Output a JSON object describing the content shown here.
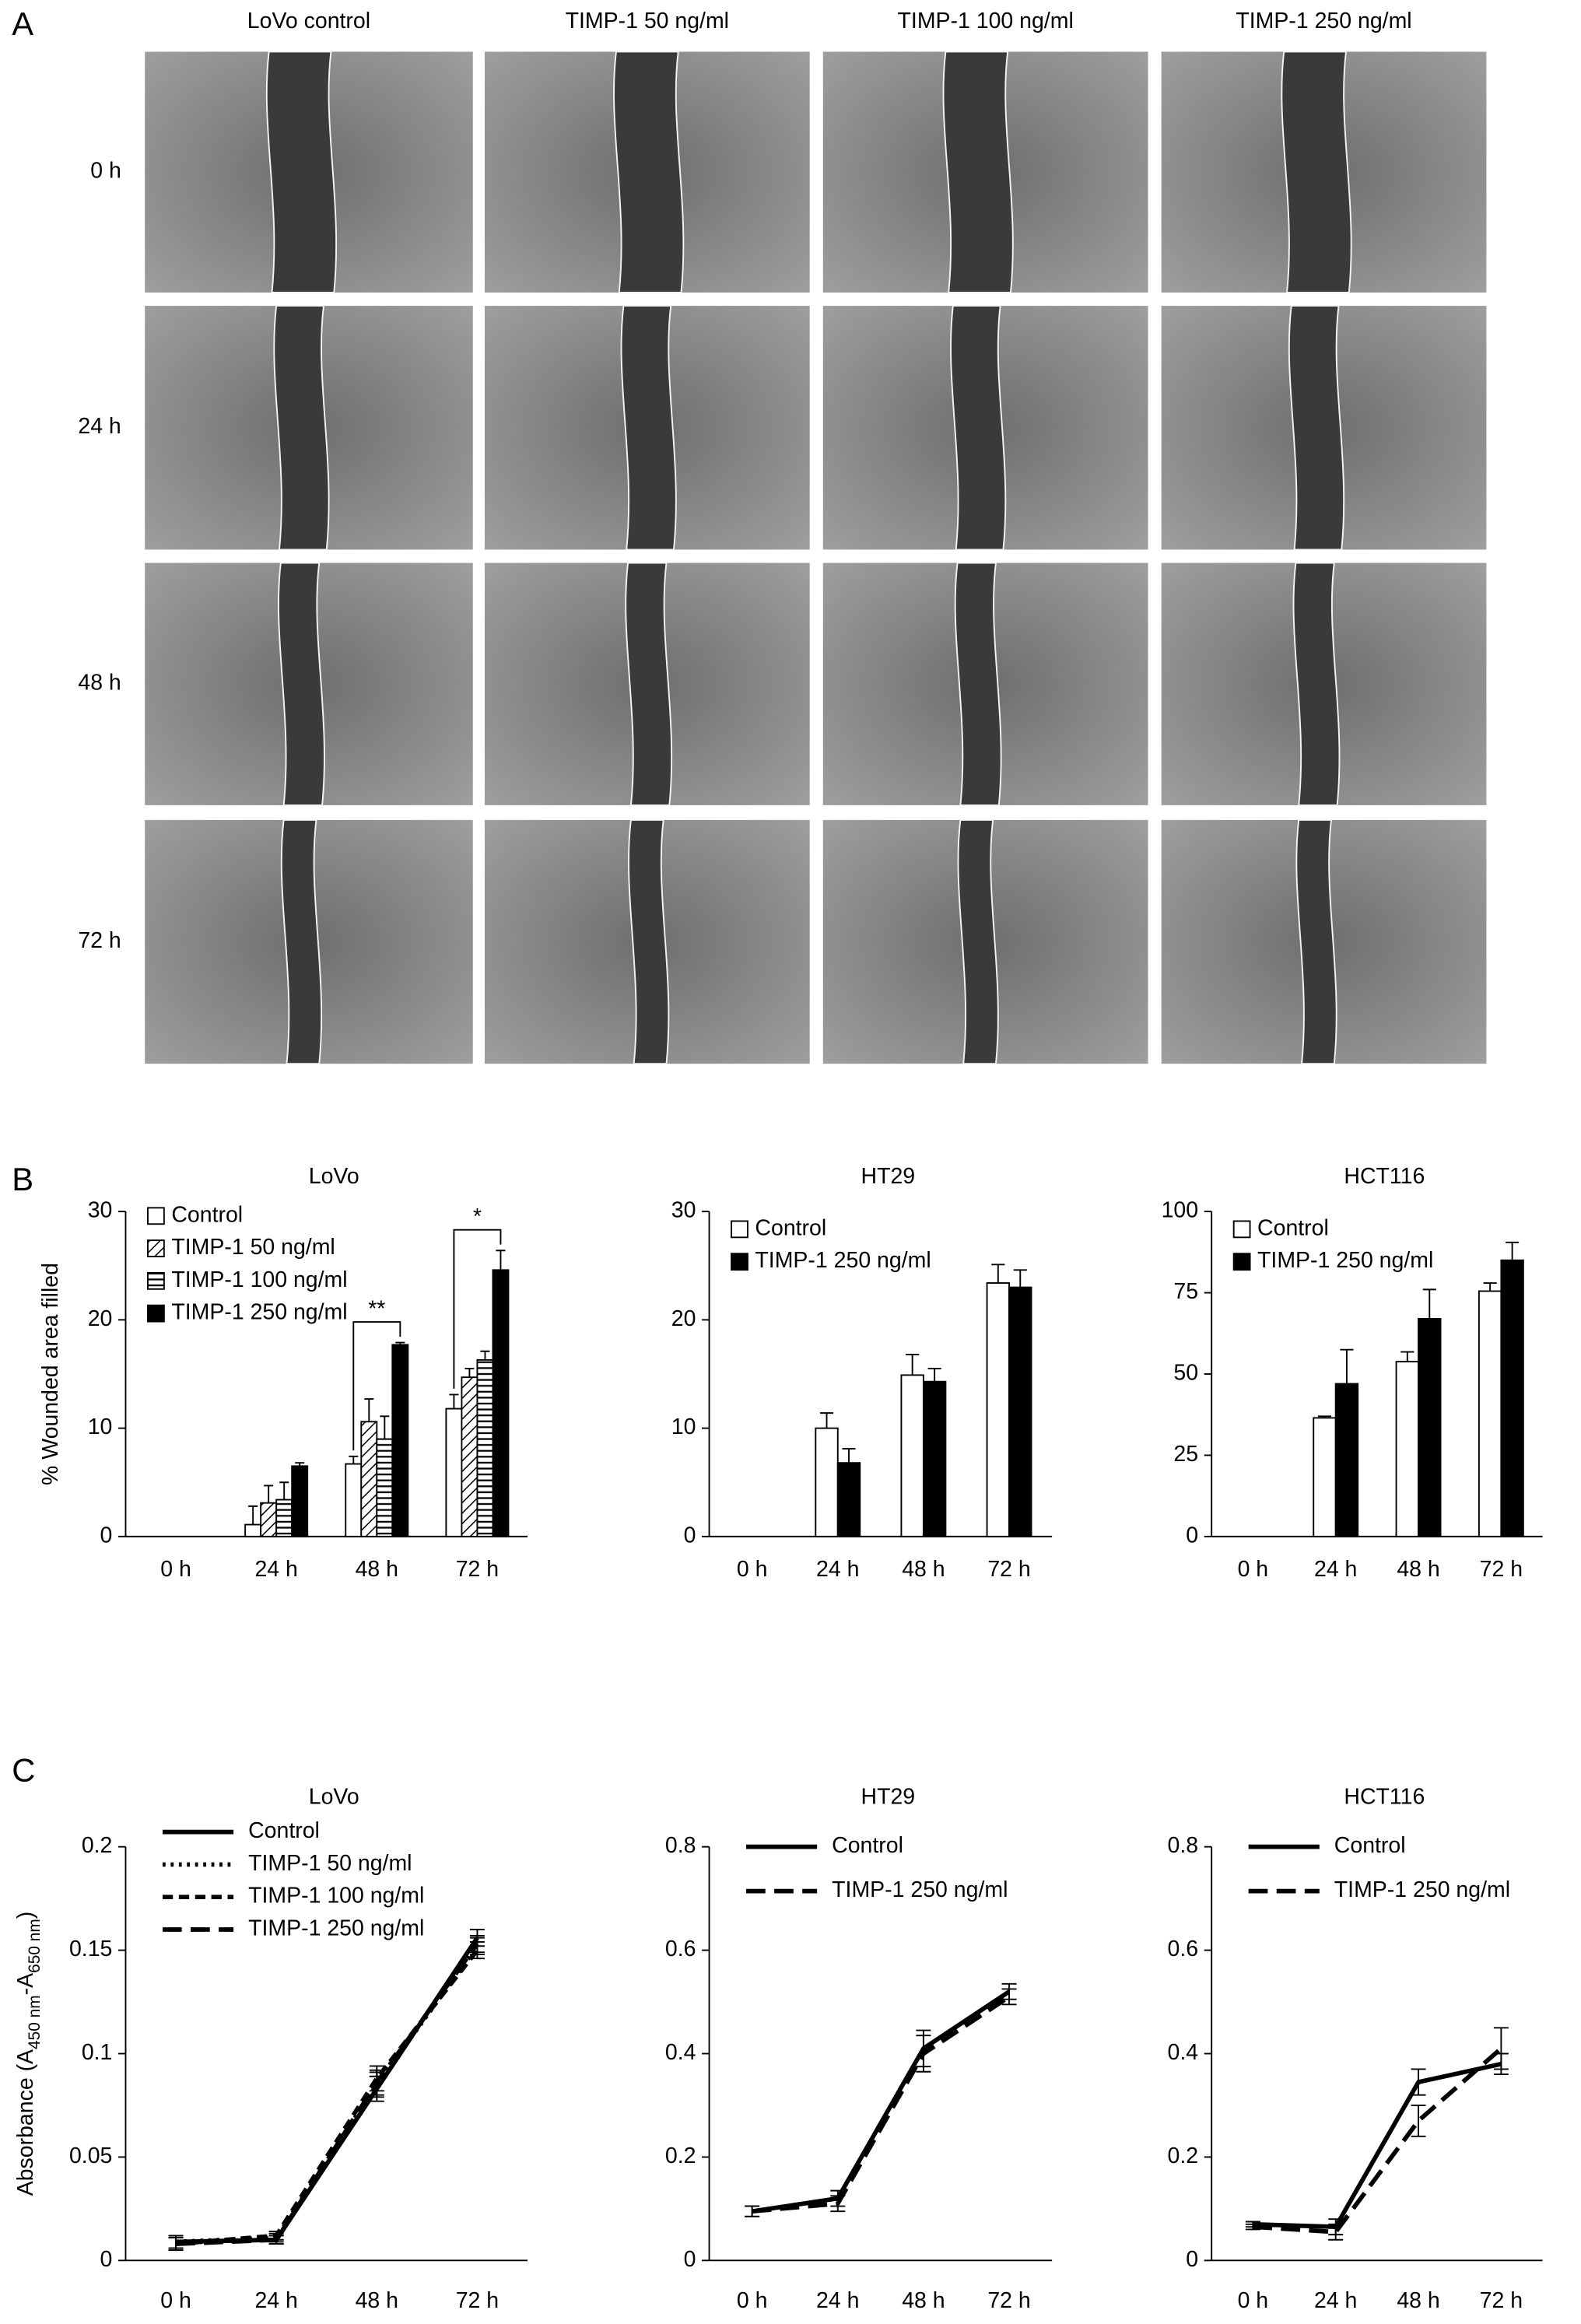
{
  "panel_labels": [
    "A",
    "B",
    "C"
  ],
  "wound_assay": {
    "columns": [
      "LoVo control",
      "TIMP-1 50 ng/ml",
      "TIMP-1 100 ng/ml",
      "TIMP-1 250 ng/ml"
    ],
    "rows": [
      "0 h",
      "24 h",
      "48 h",
      "72 h"
    ]
  },
  "chart_data": [
    {
      "type": "bar",
      "title": "LoVo",
      "ylabel": "% Wounded area filled",
      "categories": [
        "0 h",
        "24 h",
        "48 h",
        "72 h"
      ],
      "ylim": [
        0,
        30
      ],
      "yticks": [
        0,
        10,
        20,
        30
      ],
      "legend": "upper left",
      "series": [
        {
          "name": "Control",
          "color": "#ffffff",
          "pattern": "none",
          "values": [
            0,
            1.1,
            6.7,
            11.8
          ],
          "errors": [
            null,
            1.7,
            0.7,
            1.3
          ]
        },
        {
          "name": "TIMP-1 50 ng/ml",
          "color": "#ffffff",
          "pattern": "diagonal",
          "values": [
            0,
            3.1,
            10.6,
            14.7
          ],
          "errors": [
            null,
            1.6,
            2.1,
            0.8
          ]
        },
        {
          "name": "TIMP-1 100 ng/ml",
          "color": "#ffffff",
          "pattern": "horizontal",
          "values": [
            0,
            3.4,
            9.0,
            16.3
          ],
          "errors": [
            null,
            1.6,
            2.1,
            0.8
          ]
        },
        {
          "name": "TIMP-1 250 ng/ml",
          "color": "#000000",
          "pattern": "none",
          "values": [
            0,
            6.5,
            17.7,
            24.6
          ],
          "errors": [
            null,
            0.3,
            0.2,
            1.8
          ]
        }
      ],
      "annotations": [
        {
          "text": "**",
          "x": "48 h"
        },
        {
          "text": "*",
          "x": "72 h"
        }
      ]
    },
    {
      "type": "bar",
      "title": "HT29",
      "categories": [
        "0 h",
        "24 h",
        "48 h",
        "72 h"
      ],
      "ylim": [
        0,
        30
      ],
      "yticks": [
        0,
        10,
        20,
        30
      ],
      "legend": "upper left",
      "series": [
        {
          "name": "Control",
          "color": "#ffffff",
          "pattern": "none",
          "values": [
            0,
            10.0,
            14.9,
            23.4
          ],
          "errors": [
            null,
            1.4,
            1.9,
            1.7
          ]
        },
        {
          "name": "TIMP-1 250 ng/ml",
          "color": "#000000",
          "pattern": "none",
          "values": [
            0,
            6.8,
            14.3,
            23.0
          ],
          "errors": [
            null,
            1.3,
            1.2,
            1.6
          ]
        }
      ]
    },
    {
      "type": "bar",
      "title": "HCT116",
      "categories": [
        "0 h",
        "24 h",
        "48 h",
        "72 h"
      ],
      "ylim": [
        0,
        100
      ],
      "yticks": [
        0,
        25,
        50,
        75,
        100
      ],
      "legend": "upper left",
      "series": [
        {
          "name": "Control",
          "color": "#ffffff",
          "pattern": "none",
          "values": [
            0,
            36.5,
            53.8,
            75.5
          ],
          "errors": [
            null,
            0.5,
            3.0,
            2.5
          ]
        },
        {
          "name": "TIMP-1 250 ng/ml",
          "color": "#000000",
          "pattern": "none",
          "values": [
            0,
            47,
            67,
            85
          ],
          "errors": [
            null,
            10.5,
            9,
            5.5
          ]
        }
      ]
    },
    {
      "type": "line",
      "title": "LoVo",
      "ylabel": [
        "Absorbance (A",
        "450 nm",
        "-A",
        "650 nm",
        ")"
      ],
      "categories": [
        "0 h",
        "24 h",
        "48 h",
        "72 h"
      ],
      "ylim": [
        0,
        0.2
      ],
      "yticks": [
        0,
        0.05,
        0.1,
        0.15,
        0.2
      ],
      "legend": "upper left",
      "series": [
        {
          "name": "Control",
          "color": "#000000",
          "dash": "solid",
          "values": [
            0.009,
            0.01,
            0.083,
            0.156
          ],
          "errors": [
            0.003,
            0.002,
            0.006,
            0.004
          ]
        },
        {
          "name": "TIMP-1 50 ng/ml",
          "color": "#000000",
          "dash": "dotted",
          "values": [
            0.009,
            0.011,
            0.085,
            0.152
          ],
          "errors": [
            0.003,
            0.002,
            0.006,
            0.004
          ]
        },
        {
          "name": "TIMP-1 100 ng/ml",
          "color": "#000000",
          "dash": "dashed",
          "values": [
            0.008,
            0.012,
            0.088,
            0.15
          ],
          "errors": [
            0.003,
            0.002,
            0.006,
            0.004
          ]
        },
        {
          "name": "TIMP-1 250 ng/ml",
          "color": "#000000",
          "dash": "long-dashed",
          "values": [
            0.008,
            0.01,
            0.086,
            0.153
          ],
          "errors": [
            0.003,
            0.002,
            0.006,
            0.004
          ]
        }
      ]
    },
    {
      "type": "line",
      "title": "HT29",
      "categories": [
        "0 h",
        "24 h",
        "48 h",
        "72 h"
      ],
      "ylim": [
        0,
        0.8
      ],
      "yticks": [
        0,
        0.2,
        0.4,
        0.6,
        0.8
      ],
      "legend": "upper left",
      "series": [
        {
          "name": "Control",
          "color": "#000000",
          "dash": "solid",
          "values": [
            0.095,
            0.12,
            0.41,
            0.52
          ],
          "errors": [
            0.01,
            0.015,
            0.035,
            0.015
          ]
        },
        {
          "name": "TIMP-1 250 ng/ml",
          "color": "#000000",
          "dash": "long-dashed",
          "values": [
            0.095,
            0.11,
            0.4,
            0.51
          ],
          "errors": [
            0.01,
            0.015,
            0.035,
            0.015
          ]
        }
      ]
    },
    {
      "type": "line",
      "title": "HCT116",
      "categories": [
        "0 h",
        "24 h",
        "48 h",
        "72 h"
      ],
      "ylim": [
        0,
        0.8
      ],
      "yticks": [
        0,
        0.2,
        0.4,
        0.6,
        0.8
      ],
      "legend": "upper left",
      "series": [
        {
          "name": "Control",
          "color": "#000000",
          "dash": "solid",
          "values": [
            0.07,
            0.065,
            0.345,
            0.38
          ],
          "errors": [
            0.005,
            0.015,
            0.025,
            0.02
          ]
        },
        {
          "name": "TIMP-1 250 ng/ml",
          "color": "#000000",
          "dash": "long-dashed",
          "values": [
            0.065,
            0.055,
            0.27,
            0.41
          ],
          "errors": [
            0.005,
            0.015,
            0.03,
            0.04
          ]
        }
      ]
    }
  ]
}
